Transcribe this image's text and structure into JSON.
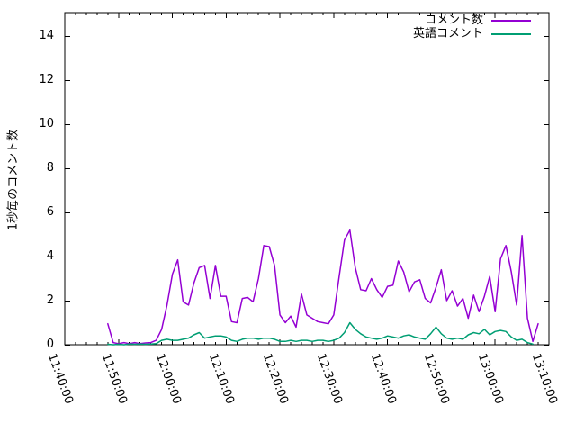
{
  "chart_data": {
    "type": "line",
    "title": "",
    "xlabel": "",
    "ylabel": "1秒毎のコメント数",
    "x_axis": {
      "start": "11:40:00",
      "end": "13:10:00",
      "major_tick_minutes": 10,
      "minor_tick_minutes": 2,
      "tick_labels": [
        "11:40:00",
        "11:50:00",
        "12:00:00",
        "12:10:00",
        "12:20:00",
        "12:30:00",
        "12:40:00",
        "12:50:00",
        "13:00:00",
        "13:10:00"
      ]
    },
    "y_axis": {
      "min": 0,
      "axis_top_value": 15.06,
      "major_tick_step": 2,
      "tick_labels": [
        "0",
        "2",
        "4",
        "6",
        "8",
        "10",
        "12",
        "14"
      ],
      "tick_values": [
        0,
        2,
        4,
        6,
        8,
        10,
        12,
        14
      ]
    },
    "grid": false,
    "legend_position": "top-right-inside",
    "colors": {
      "background": "#ffffff",
      "axis": "#000000"
    },
    "series": [
      {
        "name": "コメント数",
        "color": "#9400d3",
        "start_minute_offset": 8,
        "step_minutes": 1,
        "values": [
          0.95,
          0.1,
          0.05,
          0.1,
          0.05,
          0.1,
          0.05,
          0.08,
          0.1,
          0.2,
          0.7,
          1.8,
          3.2,
          3.85,
          1.95,
          1.8,
          2.8,
          3.5,
          3.6,
          2.1,
          3.6,
          2.2,
          2.2,
          1.05,
          1.0,
          2.1,
          2.15,
          1.95,
          3.0,
          4.5,
          4.45,
          3.6,
          1.35,
          1.0,
          1.3,
          0.8,
          2.3,
          1.35,
          1.2,
          1.05,
          1.0,
          0.95,
          1.35,
          3.1,
          4.75,
          5.2,
          3.5,
          2.5,
          2.45,
          3.0,
          2.5,
          2.15,
          2.65,
          2.7,
          3.8,
          3.3,
          2.4,
          2.85,
          2.95,
          2.1,
          1.9,
          2.6,
          3.4,
          2.0,
          2.45,
          1.75,
          2.1,
          1.2,
          2.25,
          1.5,
          2.2,
          3.1,
          1.5,
          3.9,
          4.5,
          3.3,
          1.8,
          4.95,
          1.2,
          0.15,
          0.95
        ]
      },
      {
        "name": "英語コメント",
        "color": "#009e73",
        "start_minute_offset": 8,
        "step_minutes": 1,
        "values": [
          0.02,
          0.0,
          0.02,
          0.0,
          0.03,
          0.02,
          0.03,
          0.02,
          0.03,
          0.05,
          0.2,
          0.25,
          0.2,
          0.2,
          0.25,
          0.3,
          0.45,
          0.55,
          0.3,
          0.35,
          0.4,
          0.4,
          0.35,
          0.2,
          0.15,
          0.25,
          0.3,
          0.3,
          0.25,
          0.3,
          0.3,
          0.25,
          0.15,
          0.15,
          0.2,
          0.15,
          0.2,
          0.2,
          0.15,
          0.2,
          0.2,
          0.15,
          0.2,
          0.3,
          0.55,
          1.0,
          0.7,
          0.5,
          0.35,
          0.3,
          0.25,
          0.3,
          0.4,
          0.35,
          0.3,
          0.4,
          0.45,
          0.35,
          0.3,
          0.25,
          0.5,
          0.8,
          0.5,
          0.3,
          0.25,
          0.3,
          0.25,
          0.45,
          0.55,
          0.5,
          0.7,
          0.45,
          0.6,
          0.65,
          0.6,
          0.35,
          0.2,
          0.25,
          0.1,
          0.03
        ]
      }
    ]
  },
  "legend": {
    "entries": [
      {
        "label": "コメント数",
        "color": "#9400d3"
      },
      {
        "label": "英語コメント",
        "color": "#009e73"
      }
    ]
  }
}
